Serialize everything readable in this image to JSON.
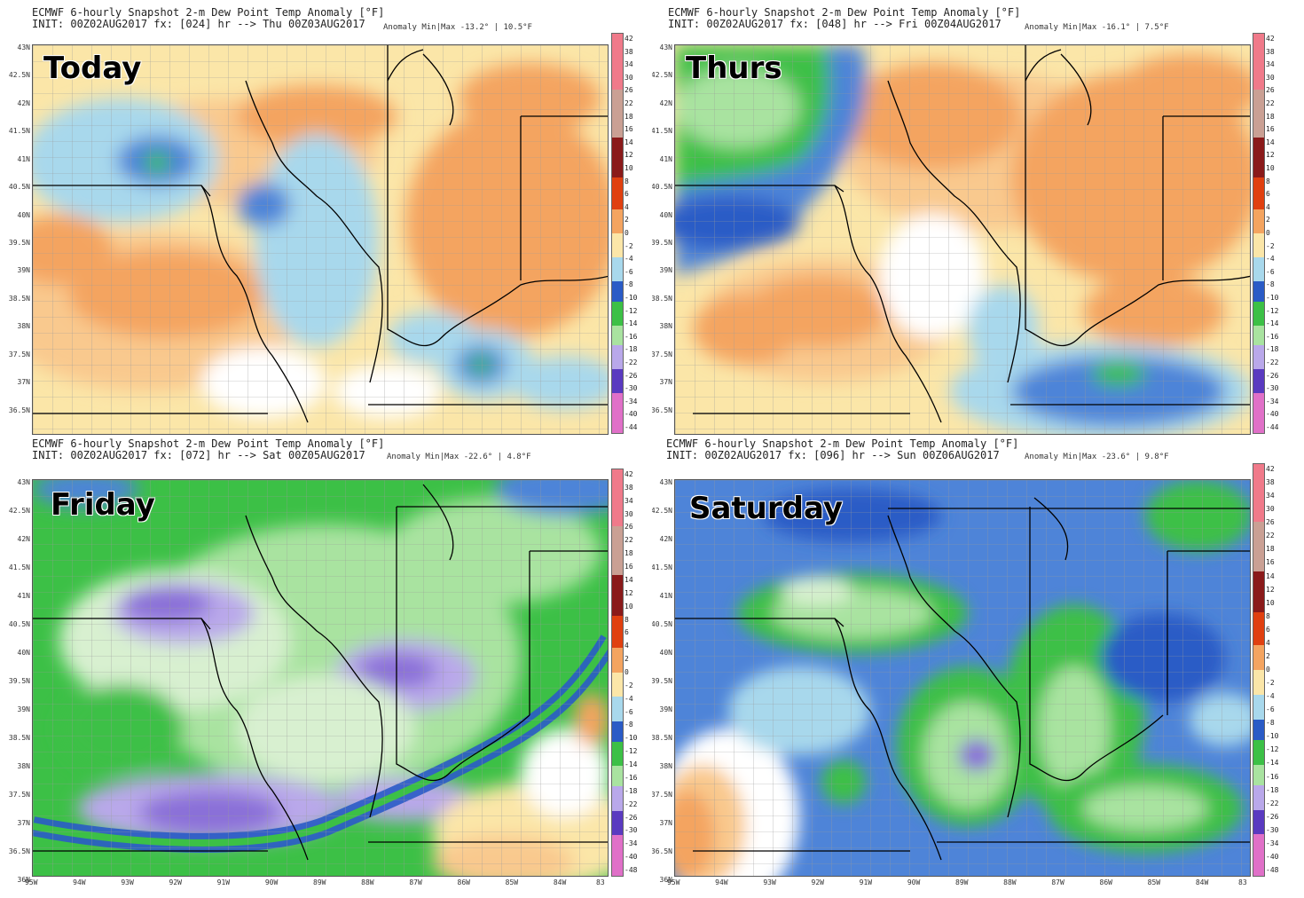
{
  "colors": {
    "orange": "#f4a460",
    "light_orange": "#f9c98e",
    "yellow": "#fbe6a8",
    "white": "#ffffff",
    "light_blue": "#a8d8ec",
    "blue": "#4e84d8",
    "dark_blue": "#2a5bc6",
    "green": "#3cc046",
    "light_green": "#a9e3a0",
    "pale_green": "#d8f0d0",
    "lavender": "#b9a8ea",
    "purple": "#8a70d8",
    "border": "#000000",
    "county": "#9a9a9a"
  },
  "latitudes": [
    "43N",
    "42.5N",
    "42N",
    "41.5N",
    "41N",
    "40.5N",
    "40N",
    "39.5N",
    "39N",
    "38.5N",
    "38N",
    "37.5N",
    "37N",
    "36.5N",
    "36N"
  ],
  "longitudes": [
    "95W",
    "94W",
    "93W",
    "92W",
    "91W",
    "90W",
    "89W",
    "88W",
    "87W",
    "86W",
    "85W",
    "84W",
    "83"
  ],
  "colorbar_top": [
    "42",
    "38",
    "34",
    "30",
    "26",
    "22",
    "18",
    "16",
    "14",
    "12",
    "10",
    "8",
    "6",
    "4",
    "2",
    "0",
    "-2",
    "-4",
    "-6",
    "-8",
    "-10",
    "-12",
    "-14",
    "-16",
    "-18",
    "-22",
    "-26",
    "-30",
    "-34",
    "-40",
    "-44"
  ],
  "colorbar_bottom": [
    "42",
    "38",
    "34",
    "30",
    "26",
    "22",
    "18",
    "16",
    "14",
    "12",
    "10",
    "8",
    "6",
    "4",
    "2",
    "0",
    "-2",
    "-4",
    "-6",
    "-8",
    "-10",
    "-12",
    "-14",
    "-16",
    "-18",
    "-22",
    "-26",
    "-30",
    "-34",
    "-40",
    "-48"
  ],
  "panels": [
    {
      "title": "ECMWF 6-hourly Snapshot 2-m Dew Point Temp Anomaly [°F]",
      "init": "INIT: 00Z02AUG2017 fx: [024] hr --> Thu 00Z03AUG2017",
      "minmax": "Anomaly Min|Max -13.2° | 10.5°F",
      "day": "Today"
    },
    {
      "title": "ECMWF 6-hourly Snapshot 2-m Dew Point Temp Anomaly [°F]",
      "init": "INIT: 00Z02AUG2017 fx: [048] hr --> Fri 00Z04AUG2017",
      "minmax": "Anomaly Min|Max -16.1° | 7.5°F",
      "day": "Thurs"
    },
    {
      "title": "ECMWF 6-hourly Snapshot 2-m Dew Point Temp Anomaly [°F]",
      "init": "INIT: 00Z02AUG2017 fx: [072] hr --> Sat 00Z05AUG2017",
      "minmax": "Anomaly Min|Max -22.6° | 4.8°F",
      "day": "Friday"
    },
    {
      "title": "ECMWF 6-hourly Snapshot 2-m Dew Point Temp Anomaly [°F]",
      "init": "INIT: 00Z02AUG2017 fx: [096] hr --> Sun 00Z06AUG2017",
      "minmax": "Anomaly Min|Max -23.6° | 9.8°F",
      "day": "Saturday"
    }
  ]
}
